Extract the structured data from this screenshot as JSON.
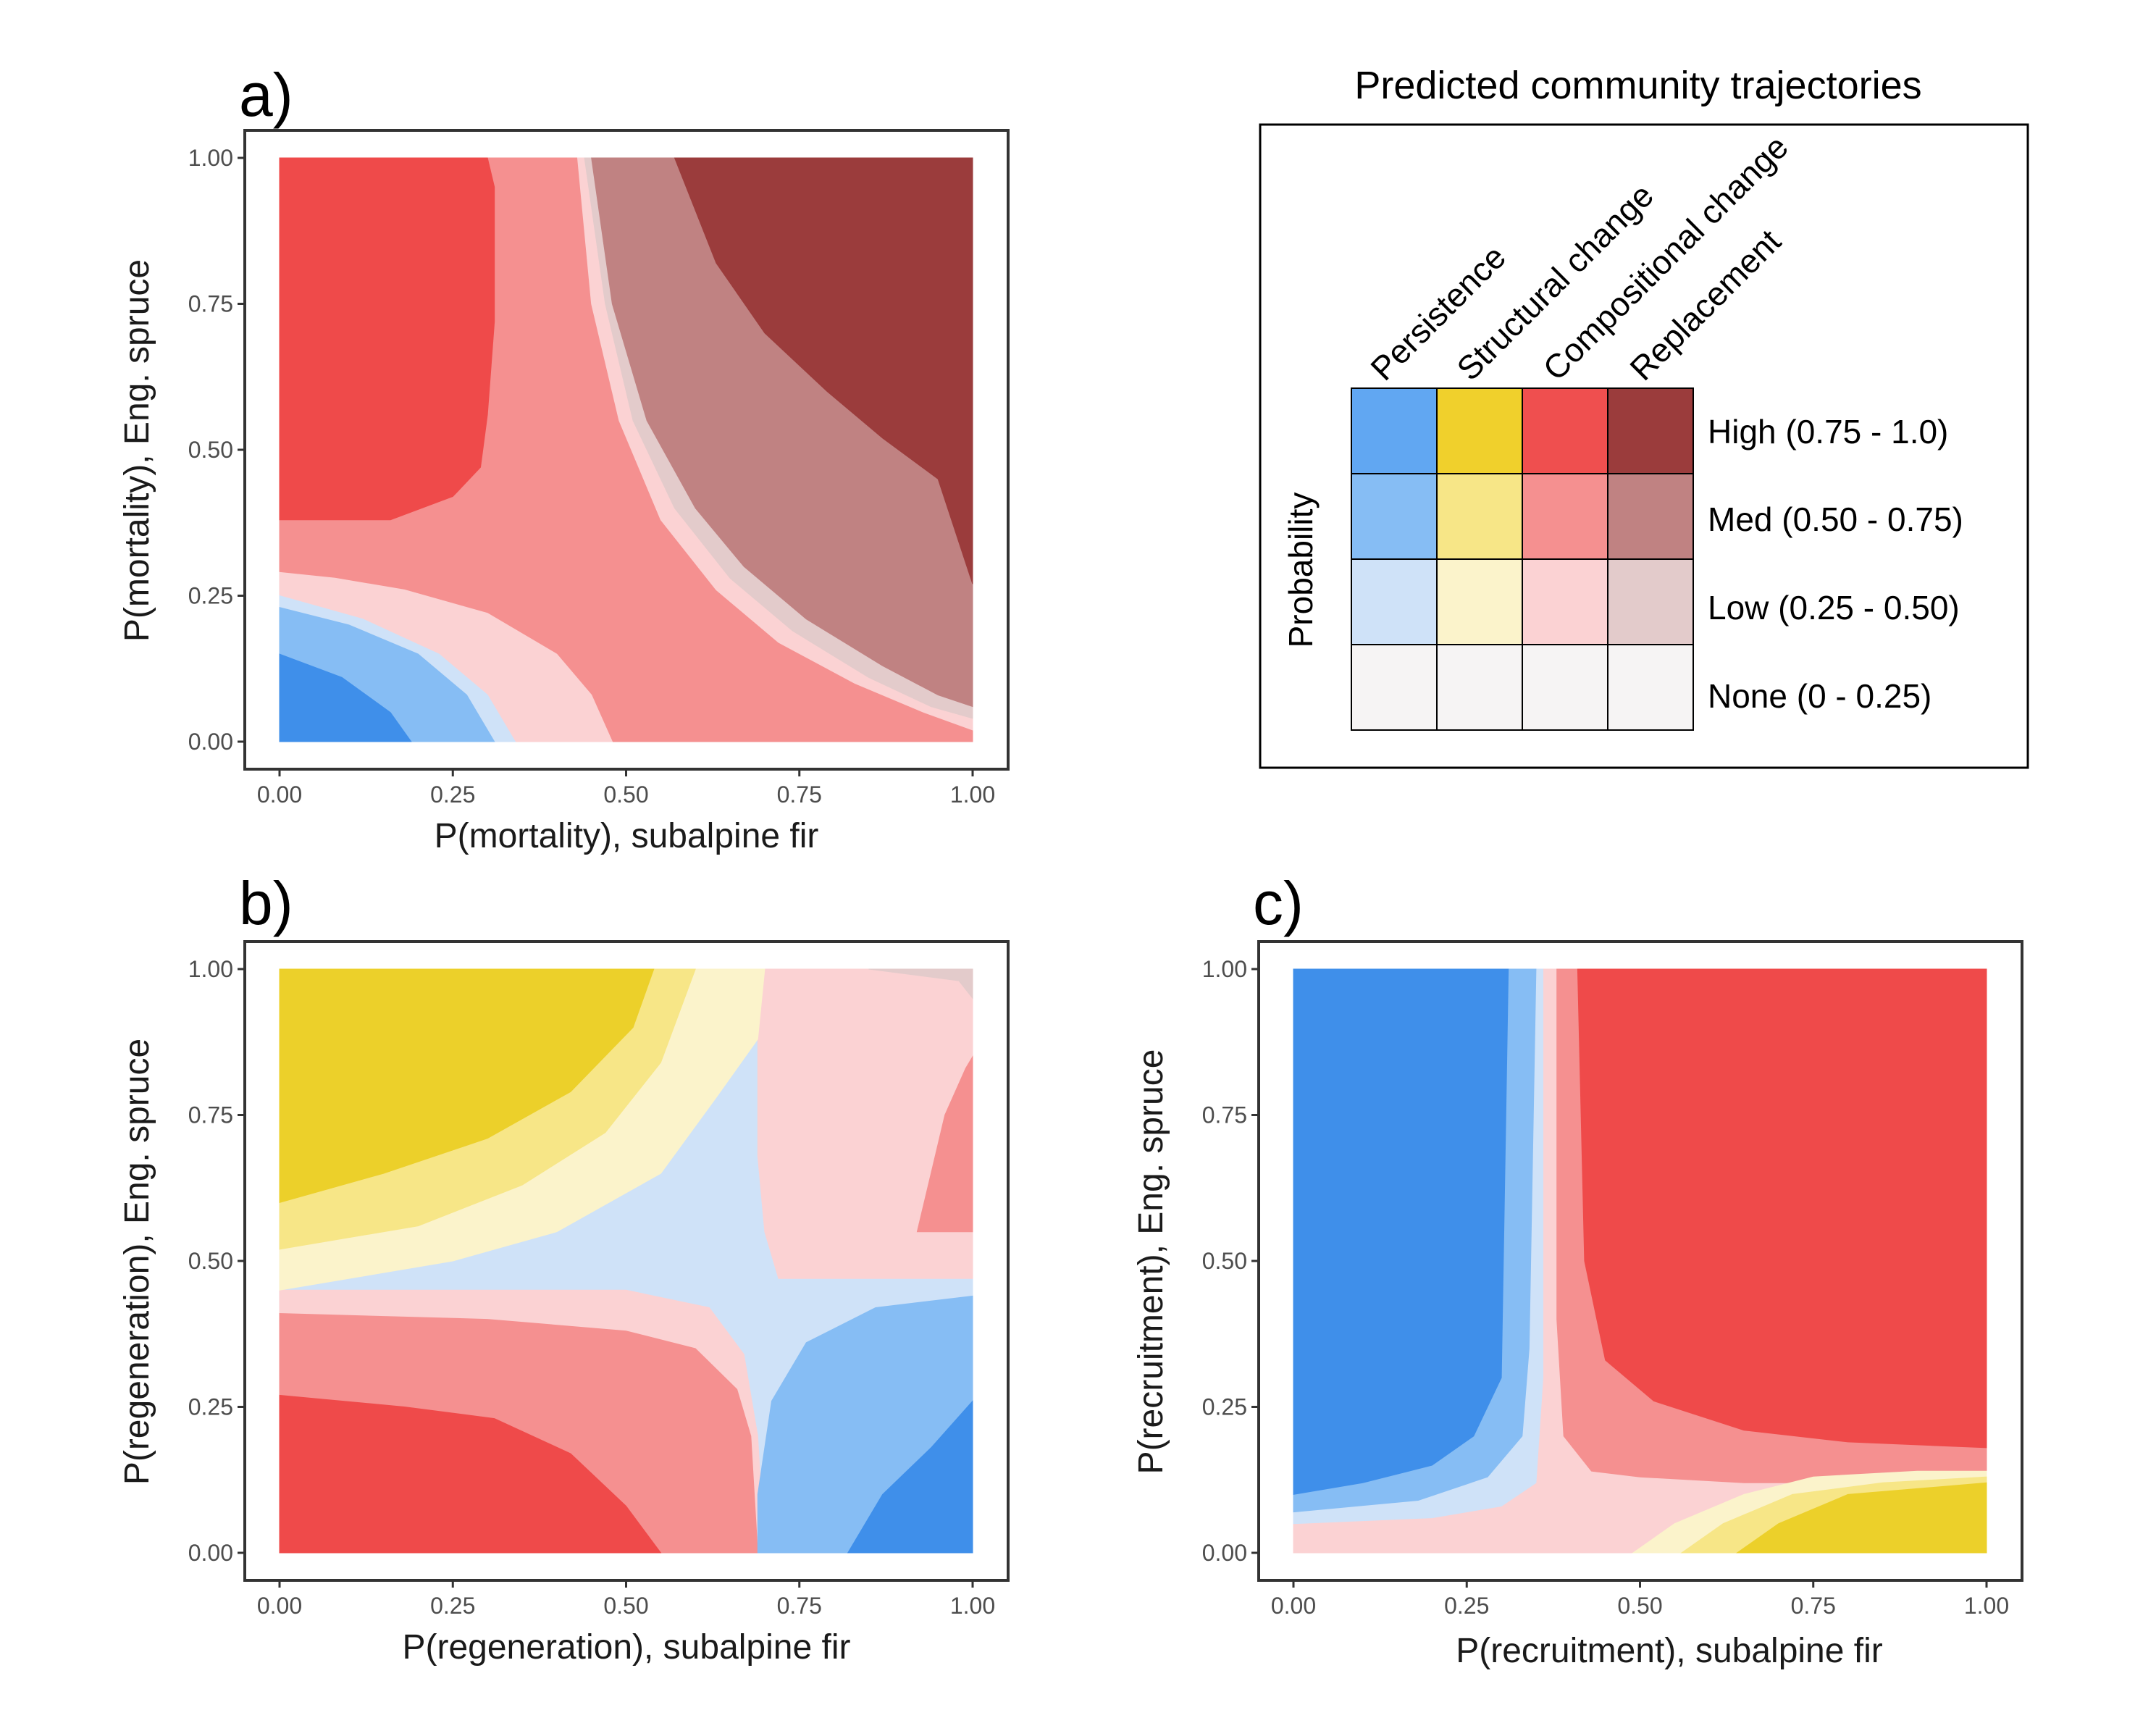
{
  "colors": {
    "persistence": [
      "#f6f4f4",
      "#cfe2f8",
      "#86bdf4",
      "#61a7f2"
    ],
    "structural": [
      "#f6f4f4",
      "#fbf3cb",
      "#f7e687",
      "#f0d02c"
    ],
    "compositional": [
      "#f6f4f4",
      "#fbd2d3",
      "#f59090",
      "#ef4f4f"
    ],
    "replacement": [
      "#f6f4f4",
      "#e3cbcb",
      "#c08282",
      "#9b3c3c"
    ],
    "persistence_strong": "#3f8fea",
    "compositional_strong": "#ef4a4a",
    "structural_strong": "#ecd02a"
  },
  "legend": {
    "title": "Predicted community trajectories",
    "columns": [
      "Persistence",
      "Structural change",
      "Compositional change",
      "Replacement"
    ],
    "rows": [
      "High (0.75 - 1.0)",
      "Med (0.50 - 0.75)",
      "Low (0.25 - 0.50)",
      "None (0 - 0.25)"
    ],
    "ylabel": "Probability"
  },
  "chart_data": [
    {
      "type": "heatmap",
      "panel": "a)",
      "xlabel": "P(mortality), subalpine fir",
      "ylabel": "P(mortality), Eng. spruce",
      "xlim": [
        0,
        1
      ],
      "ylim": [
        0,
        1
      ],
      "xticks": [
        "0.00",
        "0.25",
        "0.50",
        "0.75",
        "1.00"
      ],
      "yticks": [
        "0.00",
        "0.25",
        "0.50",
        "0.75",
        "1.00"
      ],
      "regions": [
        {
          "color": "#f59090",
          "points": [
            [
              0,
              0
            ],
            [
              1,
              0
            ],
            [
              1,
              1
            ],
            [
              0,
              1
            ]
          ]
        },
        {
          "color": "#fbd2d3",
          "points": [
            [
              0,
              0
            ],
            [
              0.48,
              0
            ],
            [
              0.45,
              0.08
            ],
            [
              0.4,
              0.15
            ],
            [
              0.3,
              0.22
            ],
            [
              0.18,
              0.26
            ],
            [
              0.08,
              0.28
            ],
            [
              0,
              0.29
            ]
          ]
        },
        {
          "color": "#cfe2f8",
          "points": [
            [
              0,
              0
            ],
            [
              0.34,
              0
            ],
            [
              0.3,
              0.08
            ],
            [
              0.23,
              0.15
            ],
            [
              0.12,
              0.21
            ],
            [
              0,
              0.25
            ]
          ]
        },
        {
          "color": "#86bdf4",
          "points": [
            [
              0,
              0
            ],
            [
              0.31,
              0
            ],
            [
              0.27,
              0.08
            ],
            [
              0.2,
              0.15
            ],
            [
              0.1,
              0.2
            ],
            [
              0,
              0.23
            ]
          ]
        },
        {
          "color": "#3f8fea",
          "points": [
            [
              0,
              0
            ],
            [
              0.19,
              0
            ],
            [
              0.16,
              0.05
            ],
            [
              0.09,
              0.11
            ],
            [
              0,
              0.15
            ]
          ]
        },
        {
          "color": "#ef4a4a",
          "points": [
            [
              0,
              0.38
            ],
            [
              0.16,
              0.38
            ],
            [
              0.25,
              0.42
            ],
            [
              0.29,
              0.47
            ],
            [
              0.3,
              0.56
            ],
            [
              0.31,
              0.72
            ],
            [
              0.31,
              0.95
            ],
            [
              0.3,
              1
            ],
            [
              0,
              1
            ]
          ]
        },
        {
          "color": "#fbd2d3",
          "points": [
            [
              0.43,
              1
            ],
            [
              0.45,
              0.75
            ],
            [
              0.49,
              0.55
            ],
            [
              0.55,
              0.38
            ],
            [
              0.63,
              0.26
            ],
            [
              0.72,
              0.17
            ],
            [
              0.83,
              0.1
            ],
            [
              0.93,
              0.05
            ],
            [
              1,
              0.02
            ],
            [
              1,
              1
            ]
          ]
        },
        {
          "color": "#e3cbcb",
          "points": [
            [
              0.44,
              1
            ],
            [
              0.47,
              0.75
            ],
            [
              0.51,
              0.55
            ],
            [
              0.57,
              0.4
            ],
            [
              0.65,
              0.28
            ],
            [
              0.74,
              0.19
            ],
            [
              0.85,
              0.11
            ],
            [
              0.94,
              0.06
            ],
            [
              1,
              0.04
            ],
            [
              1,
              1
            ]
          ]
        },
        {
          "color": "#c08282",
          "points": [
            [
              0.45,
              1
            ],
            [
              0.48,
              0.75
            ],
            [
              0.53,
              0.55
            ],
            [
              0.6,
              0.4
            ],
            [
              0.67,
              0.3
            ],
            [
              0.76,
              0.21
            ],
            [
              0.87,
              0.13
            ],
            [
              0.95,
              0.08
            ],
            [
              1,
              0.06
            ],
            [
              1,
              1
            ]
          ]
        },
        {
          "color": "#9b3c3c",
          "points": [
            [
              0.57,
              1
            ],
            [
              0.63,
              0.82
            ],
            [
              0.7,
              0.7
            ],
            [
              0.79,
              0.6
            ],
            [
              0.87,
              0.52
            ],
            [
              0.95,
              0.45
            ],
            [
              1,
              0.27
            ],
            [
              1,
              1
            ]
          ]
        }
      ]
    },
    {
      "type": "heatmap",
      "panel": "b)",
      "xlabel": "P(regeneration), subalpine fir",
      "ylabel": "P(regeneration), Eng. spruce",
      "xlim": [
        0,
        1
      ],
      "ylim": [
        0,
        1
      ],
      "xticks": [
        "0.00",
        "0.25",
        "0.50",
        "0.75",
        "1.00"
      ],
      "yticks": [
        "0.00",
        "0.25",
        "0.50",
        "0.75",
        "1.00"
      ],
      "regions": [
        {
          "color": "#cfe2f8",
          "points": [
            [
              0,
              0
            ],
            [
              1,
              0
            ],
            [
              1,
              1
            ],
            [
              0,
              1
            ]
          ]
        },
        {
          "color": "#fbd2d3",
          "points": [
            [
              0,
              0
            ],
            [
              0.7,
              0
            ],
            [
              0.69,
              0.2
            ],
            [
              0.67,
              0.34
            ],
            [
              0.62,
              0.42
            ],
            [
              0.5,
              0.45
            ],
            [
              0.3,
              0.45
            ],
            [
              0,
              0.45
            ]
          ]
        },
        {
          "color": "#f59090",
          "points": [
            [
              0,
              0
            ],
            [
              0.69,
              0
            ],
            [
              0.68,
              0.2
            ],
            [
              0.66,
              0.28
            ],
            [
              0.6,
              0.35
            ],
            [
              0.5,
              0.38
            ],
            [
              0.3,
              0.4
            ],
            [
              0,
              0.41
            ]
          ]
        },
        {
          "color": "#ef4a4a",
          "points": [
            [
              0,
              0
            ],
            [
              0.55,
              0
            ],
            [
              0.5,
              0.08
            ],
            [
              0.42,
              0.17
            ],
            [
              0.31,
              0.23
            ],
            [
              0.18,
              0.25
            ],
            [
              0,
              0.27
            ]
          ]
        },
        {
          "color": "#86bdf4",
          "points": [
            [
              0.69,
              0
            ],
            [
              1,
              0
            ],
            [
              1,
              0.44
            ],
            [
              0.86,
              0.42
            ],
            [
              0.76,
              0.36
            ],
            [
              0.71,
              0.26
            ],
            [
              0.69,
              0.1
            ]
          ]
        },
        {
          "color": "#3f8fea",
          "points": [
            [
              0.82,
              0
            ],
            [
              1,
              0
            ],
            [
              1,
              0.26
            ],
            [
              0.94,
              0.18
            ],
            [
              0.87,
              0.1
            ]
          ]
        },
        {
          "color": "#fbd2d3",
          "points": [
            [
              0.69,
              1
            ],
            [
              1,
              1
            ],
            [
              1,
              0.47
            ],
            [
              0.72,
              0.47
            ],
            [
              0.7,
              0.55
            ],
            [
              0.69,
              0.68
            ]
          ]
        },
        {
          "color": "#fbf3cb",
          "points": [
            [
              0,
              0.45
            ],
            [
              0.25,
              0.5
            ],
            [
              0.4,
              0.55
            ],
            [
              0.55,
              0.65
            ],
            [
              0.63,
              0.78
            ],
            [
              0.69,
              0.88
            ],
            [
              0.7,
              1
            ],
            [
              0,
              1
            ]
          ]
        },
        {
          "color": "#f7e687",
          "points": [
            [
              0,
              0.52
            ],
            [
              0.2,
              0.56
            ],
            [
              0.35,
              0.63
            ],
            [
              0.47,
              0.72
            ],
            [
              0.55,
              0.84
            ],
            [
              0.6,
              1
            ],
            [
              0,
              1
            ]
          ]
        },
        {
          "color": "#ecd02a",
          "points": [
            [
              0,
              0.6
            ],
            [
              0.15,
              0.65
            ],
            [
              0.3,
              0.71
            ],
            [
              0.42,
              0.79
            ],
            [
              0.51,
              0.9
            ],
            [
              0.54,
              1
            ],
            [
              0,
              1
            ]
          ]
        },
        {
          "color": "#e3cbcb",
          "points": [
            [
              0.85,
              1
            ],
            [
              1,
              1
            ],
            [
              1,
              0.95
            ],
            [
              0.98,
              0.98
            ]
          ]
        },
        {
          "color": "#f59090",
          "points": [
            [
              0.92,
              0.55
            ],
            [
              0.94,
              0.65
            ],
            [
              0.96,
              0.75
            ],
            [
              0.99,
              0.83
            ],
            [
              1,
              0.85
            ],
            [
              1,
              0.55
            ]
          ]
        }
      ]
    },
    {
      "type": "heatmap",
      "panel": "c)",
      "xlabel": "P(recruitment), subalpine fir",
      "ylabel": "P(recruitment), Eng. spruce",
      "xlim": [
        0,
        1
      ],
      "ylim": [
        0,
        1
      ],
      "xticks": [
        "0.00",
        "0.25",
        "0.50",
        "0.75",
        "1.00"
      ],
      "yticks": [
        "0.00",
        "0.25",
        "0.50",
        "0.75",
        "1.00"
      ],
      "regions": [
        {
          "color": "#fbd2d3",
          "points": [
            [
              0,
              0
            ],
            [
              1,
              0
            ],
            [
              1,
              1
            ],
            [
              0,
              1
            ]
          ]
        },
        {
          "color": "#cfe2f8",
          "points": [
            [
              0,
              0.05
            ],
            [
              0.2,
              0.06
            ],
            [
              0.3,
              0.08
            ],
            [
              0.35,
              0.12
            ],
            [
              0.36,
              0.3
            ],
            [
              0.36,
              1
            ],
            [
              0,
              1
            ]
          ]
        },
        {
          "color": "#86bdf4",
          "points": [
            [
              0,
              0.07
            ],
            [
              0.18,
              0.09
            ],
            [
              0.28,
              0.13
            ],
            [
              0.33,
              0.2
            ],
            [
              0.34,
              0.35
            ],
            [
              0.35,
              1
            ],
            [
              0,
              1
            ]
          ]
        },
        {
          "color": "#3f8fea",
          "points": [
            [
              0,
              0.1
            ],
            [
              0.1,
              0.12
            ],
            [
              0.2,
              0.15
            ],
            [
              0.26,
              0.2
            ],
            [
              0.3,
              0.3
            ],
            [
              0.31,
              1
            ],
            [
              0,
              1
            ]
          ]
        },
        {
          "color": "#f59090",
          "points": [
            [
              0.38,
              1
            ],
            [
              0.38,
              0.4
            ],
            [
              0.39,
              0.2
            ],
            [
              0.43,
              0.14
            ],
            [
              0.5,
              0.13
            ],
            [
              0.65,
              0.12
            ],
            [
              1,
              0.12
            ],
            [
              1,
              1
            ]
          ]
        },
        {
          "color": "#ef4a4a",
          "points": [
            [
              0.41,
              1
            ],
            [
              0.42,
              0.5
            ],
            [
              0.45,
              0.33
            ],
            [
              0.52,
              0.26
            ],
            [
              0.65,
              0.21
            ],
            [
              0.8,
              0.19
            ],
            [
              1,
              0.18
            ],
            [
              1,
              1
            ]
          ]
        },
        {
          "color": "#fbf3cb",
          "points": [
            [
              0.49,
              0
            ],
            [
              0.55,
              0.05
            ],
            [
              0.65,
              0.1
            ],
            [
              0.75,
              0.13
            ],
            [
              0.9,
              0.14
            ],
            [
              1,
              0.14
            ],
            [
              1,
              0
            ]
          ]
        },
        {
          "color": "#f7e687",
          "points": [
            [
              0.56,
              0
            ],
            [
              0.62,
              0.05
            ],
            [
              0.72,
              0.1
            ],
            [
              0.85,
              0.12
            ],
            [
              1,
              0.13
            ],
            [
              1,
              0
            ]
          ]
        },
        {
          "color": "#ecd02a",
          "points": [
            [
              0.64,
              0
            ],
            [
              0.7,
              0.05
            ],
            [
              0.8,
              0.1
            ],
            [
              1,
              0.12
            ],
            [
              1,
              0
            ]
          ]
        }
      ]
    }
  ]
}
